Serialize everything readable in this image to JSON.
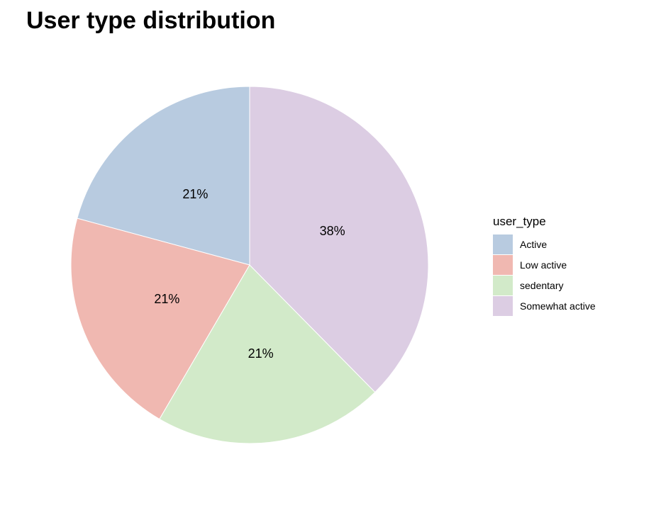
{
  "chart_data": {
    "type": "pie",
    "title": "User type distribution",
    "legend_title": "user_type",
    "legend_position": "right",
    "categories": [
      "Active",
      "Low active",
      "sedentary",
      "Somewhat active"
    ],
    "values": [
      21,
      21,
      21,
      38
    ],
    "labels": [
      "21%",
      "21%",
      "21%",
      "38%"
    ],
    "colors": [
      "#b8cbe0",
      "#f0b8b1",
      "#d2eac9",
      "#dccde3"
    ]
  }
}
